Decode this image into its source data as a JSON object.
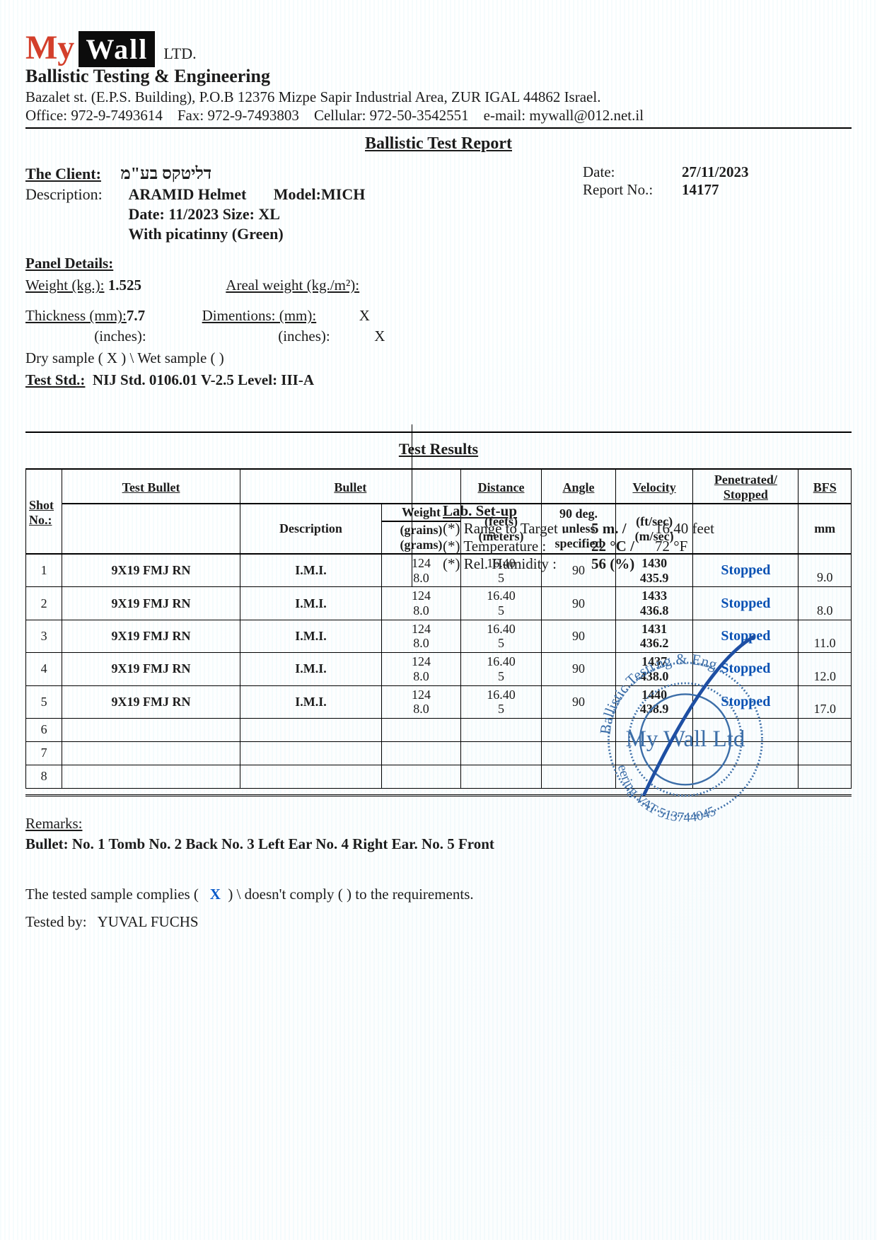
{
  "header": {
    "logo_my": "My",
    "logo_wall": "Wall",
    "logo_ltd": "LTD.",
    "tagline": "Ballistic Testing & Engineering",
    "address": "Bazalet st. (E.P.S. Building), P.O.B 12376 Mizpe Sapir Industrial Area, ZUR IGAL 44862 Israel.",
    "office_label": "Office:",
    "office": "972-9-7493614",
    "fax_label": "Fax:",
    "fax": "972-9-7493803",
    "cell_label": "Cellular:",
    "cell": "972-50-3542551",
    "email_label": "e-mail:",
    "email": "mywall@012.net.il"
  },
  "report_title": "Ballistic Test Report",
  "client": {
    "label": "The Client:",
    "name": "דליטקס בע\"מ",
    "desc_label": "Description:",
    "desc1": "ARAMID  Helmet",
    "model_label": "Model:",
    "model": "MICH",
    "dateline": "Date: 11/2023    Size: XL",
    "extra": "With picatinny (Green)"
  },
  "report": {
    "date_label": "Date:",
    "date": "27/11/2023",
    "no_label": "Report No.:",
    "no": "14177"
  },
  "panel": {
    "title": "Panel Details:",
    "weight_label": "Weight (kg.):",
    "weight": "1.525",
    "areal_label": "Areal weight (kg./m²):",
    "thick_mm_label": "Thickness (mm):",
    "thick_mm": "7.7",
    "thick_in_label": "(inches):",
    "dim_label": "Dimentions:  (mm):",
    "dim_x1": "X",
    "dim_in_label": "(inches):",
    "dim_x2": "X",
    "dry_label": "Dry sample   (  X  )      \\     Wet sample (        )",
    "std_label": "Test Std.:",
    "std": "NIJ Std. 0106.01   V-2.5  Level: III-A"
  },
  "lab": {
    "title": "Lab. Set-up",
    "range_label": "(*) Range to Target :",
    "range_m": "5  m. /",
    "range_ft": "16.40  feet",
    "temp_label": "(*) Temperature :",
    "temp_c": "22  °C  /",
    "temp_f": "72  °F",
    "hum_label": "(*) Rel. Humidity :",
    "hum": "56   (%)"
  },
  "results_title": "Test Results",
  "table": {
    "columns": {
      "shot": "Shot No.:",
      "test_bullet": "Test Bullet",
      "bullet": "Bullet",
      "description": "Description",
      "weight": "Weight",
      "weight_unit": "(grains) (grams)",
      "distance": "Distance",
      "distance_unit": "(feets) (meters)",
      "angle": "Angle",
      "angle_sub": "90 deg. unless specified",
      "velocity": "Velocity",
      "velocity_unit": "(ft/sec) (m/sec)",
      "penstop": "Penetrated/ Stopped",
      "bfs": "BFS",
      "bfs_unit": "mm"
    },
    "rows": [
      {
        "n": "1",
        "bullet": "9X19  FMJ  RN",
        "desc": "I.M.I.",
        "w1": "124",
        "w2": "8.0",
        "d1": "16.40",
        "d2": "5",
        "ang": "90",
        "v1": "1430",
        "v2": "435.9",
        "res": "Stopped",
        "bfs": "9.0"
      },
      {
        "n": "2",
        "bullet": "9X19  FMJ  RN",
        "desc": "I.M.I.",
        "w1": "124",
        "w2": "8.0",
        "d1": "16.40",
        "d2": "5",
        "ang": "90",
        "v1": "1433",
        "v2": "436.8",
        "res": "Stopped",
        "bfs": "8.0"
      },
      {
        "n": "3",
        "bullet": "9X19  FMJ  RN",
        "desc": "I.M.I.",
        "w1": "124",
        "w2": "8.0",
        "d1": "16.40",
        "d2": "5",
        "ang": "90",
        "v1": "1431",
        "v2": "436.2",
        "res": "Stopped",
        "bfs": "11.0"
      },
      {
        "n": "4",
        "bullet": "9X19  FMJ  RN",
        "desc": "I.M.I.",
        "w1": "124",
        "w2": "8.0",
        "d1": "16.40",
        "d2": "5",
        "ang": "90",
        "v1": "1437",
        "v2": "438.0",
        "res": "Stopped",
        "bfs": "12.0"
      },
      {
        "n": "5",
        "bullet": "9X19  FMJ  RN",
        "desc": "I.M.I.",
        "w1": "124",
        "w2": "8.0",
        "d1": "16.40",
        "d2": "5",
        "ang": "90",
        "v1": "1440",
        "v2": "438.9",
        "res": "Stopped",
        "bfs": "17.0"
      },
      {
        "n": "6"
      },
      {
        "n": "7"
      },
      {
        "n": "8"
      }
    ]
  },
  "remarks": {
    "label": "Remarks:",
    "line": "Bullet:  No.  1  Tomb      No. 2 Back   No. 3  Left Ear  No.  4  Right  Ear.  No. 5  Front"
  },
  "compliance": {
    "pre": "The tested sample complies (",
    "x": "X",
    "mid": ")   \\   doesn't comply (        )    to the requirements.",
    "tested_by_label": "Tested by:",
    "tested_by": "YUVAL FUCHS"
  },
  "stamp": {
    "top_text": "ng & Eng",
    "inner": "My Wall Ltd",
    "outer_suffix": "eering VAT 513744045",
    "outer_prefix": "Ballistic Testi"
  },
  "colors": {
    "accent_red": "#d33f2b",
    "accent_blue": "#0951b3",
    "stamp_blue": "#3c6ea8"
  }
}
